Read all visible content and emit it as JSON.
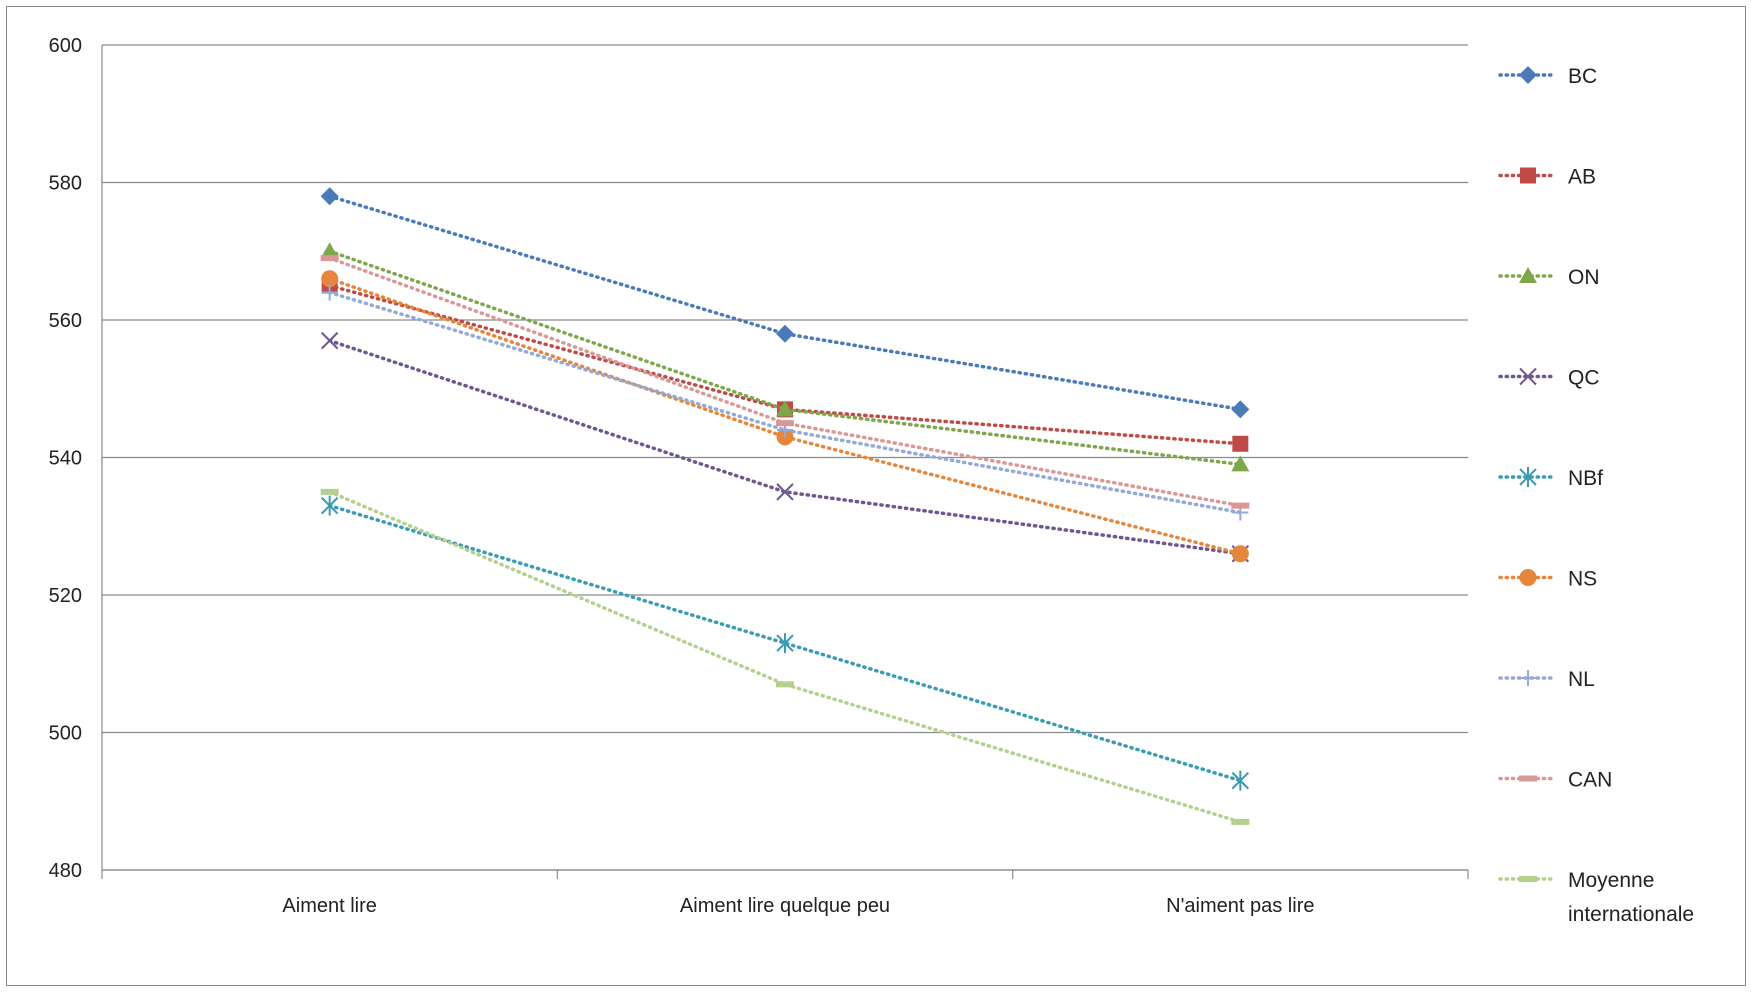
{
  "chart_data": {
    "type": "line",
    "title": "",
    "xlabel": "",
    "ylabel": "",
    "categories": [
      "Aiment lire",
      "Aiment lire quelque peu",
      "N'aiment pas lire"
    ],
    "ylim": [
      480,
      600
    ],
    "yticks": [
      480,
      500,
      520,
      540,
      560,
      580,
      600
    ],
    "grid": true,
    "legend_position": "right",
    "line_style": "dotted",
    "series": [
      {
        "name": "BC",
        "values": [
          578,
          558,
          547
        ],
        "color": "#4a7ab8",
        "marker": "diamond"
      },
      {
        "name": "AB",
        "values": [
          565,
          547,
          542
        ],
        "color": "#be4b48",
        "marker": "square"
      },
      {
        "name": "ON",
        "values": [
          570,
          547,
          539
        ],
        "color": "#7ea64a",
        "marker": "triangle"
      },
      {
        "name": "QC",
        "values": [
          557,
          535,
          526
        ],
        "color": "#6e578f",
        "marker": "x"
      },
      {
        "name": "NBf",
        "values": [
          533,
          513,
          493
        ],
        "color": "#3a9cb4",
        "marker": "star"
      },
      {
        "name": "NS",
        "values": [
          566,
          543,
          526
        ],
        "color": "#e5863c",
        "marker": "circle"
      },
      {
        "name": "NL",
        "values": [
          564,
          544,
          532
        ],
        "color": "#94a9d4",
        "marker": "plus"
      },
      {
        "name": "CAN",
        "values": [
          569,
          545,
          533
        ],
        "color": "#d99897",
        "marker": "dash"
      },
      {
        "name": "Moyenne internationale",
        "values": [
          535,
          507,
          487
        ],
        "color": "#b4cf8e",
        "marker": "dash"
      }
    ]
  },
  "legend_label_lines": [
    [
      "BC"
    ],
    [
      "AB"
    ],
    [
      "ON"
    ],
    [
      "QC"
    ],
    [
      "NBf"
    ],
    [
      "NS"
    ],
    [
      "NL"
    ],
    [
      "CAN"
    ],
    [
      "Moyenne",
      "internationale"
    ]
  ]
}
